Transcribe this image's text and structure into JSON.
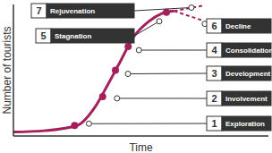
{
  "chart_data": {
    "type": "line",
    "x_label": "Time",
    "y_label": "Number of tourists",
    "tick_labels": false,
    "xlim": [
      0,
      10
    ],
    "ylim": [
      0,
      10
    ],
    "series": [
      {
        "color": "#a51f5b",
        "line_style": "solid",
        "x": [
          0,
          1.2,
          2.5,
          3.2,
          3.7,
          4.2,
          4.7,
          5.3,
          5.8,
          6.3
        ],
        "values": [
          0.3,
          0.4,
          0.8,
          2.2,
          3.9,
          5.7,
          7.5,
          8.7,
          9.3,
          9.5
        ]
      },
      {
        "color": "#a51f5b",
        "line_style": "dashed",
        "x": [
          6.3,
          7.4
        ],
        "values": [
          9.5,
          9.9
        ]
      },
      {
        "color": "#a51f5b",
        "line_style": "dashed",
        "x": [
          6.3,
          7.4
        ],
        "values": [
          9.5,
          8.8
        ]
      }
    ],
    "annotations": [
      {
        "number": 1,
        "text": "Exploration",
        "x": 2.4,
        "y": 0.8
      },
      {
        "number": 2,
        "text": "Involvement",
        "x": 3.5,
        "y": 3.0
      },
      {
        "number": 3,
        "text": "Development",
        "x": 4.0,
        "y": 5.0
      },
      {
        "number": 4,
        "text": "Consolidation",
        "x": 4.5,
        "y": 6.8
      },
      {
        "number": 5,
        "text": "Stagnation",
        "x": 6.0,
        "y": 9.4
      },
      {
        "number": 6,
        "text": "Decline",
        "x": 7.4,
        "y": 8.8
      },
      {
        "number": 7,
        "text": "Rejuvenation",
        "x": 7.4,
        "y": 9.9
      }
    ]
  }
}
